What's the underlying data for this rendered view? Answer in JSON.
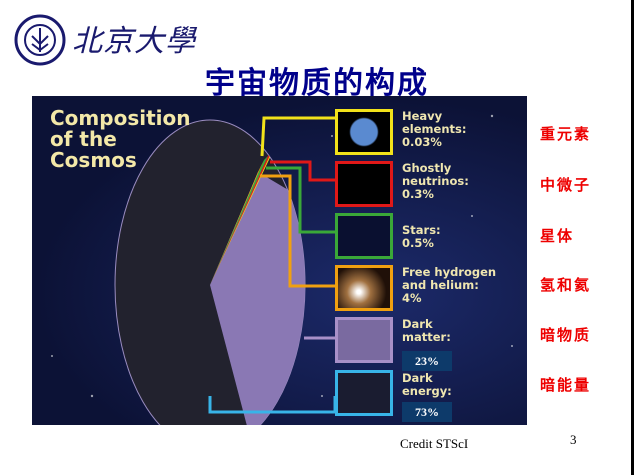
{
  "logo": {
    "text": "北京大學",
    "seal_text": "PEKING UNIVERSITY 1898"
  },
  "title": "宇宙物质的构成",
  "figure": {
    "title_lines": [
      "Composition",
      "of the",
      "Cosmos"
    ],
    "items": [
      {
        "label": [
          "Heavy",
          "elements:",
          "0.03%"
        ],
        "color": "#f2e21a",
        "cn": "重元素",
        "pct": 0.03
      },
      {
        "label": [
          "Ghostly",
          "neutrinos:",
          "0.3%"
        ],
        "color": "#e01818",
        "cn": "中微子",
        "pct": 0.3
      },
      {
        "label": [
          "Stars:",
          "0.5%"
        ],
        "color": "#3aa838",
        "cn": "星体",
        "pct": 0.5
      },
      {
        "label": [
          "Free hydrogen",
          "and helium:",
          "4%"
        ],
        "color": "#f0a010",
        "cn": "氢和氦",
        "pct": 4
      },
      {
        "label": [
          "Dark",
          "matter:"
        ],
        "badge": "23%",
        "color": "#a890c8",
        "cn": "暗物质",
        "pct": 23
      },
      {
        "label": [
          "Dark",
          "energy:"
        ],
        "badge": "73%",
        "color": "#38b4e8",
        "cn": "暗能量",
        "pct": 73
      }
    ]
  },
  "credit": "Credit STScI",
  "page_number": "3"
}
